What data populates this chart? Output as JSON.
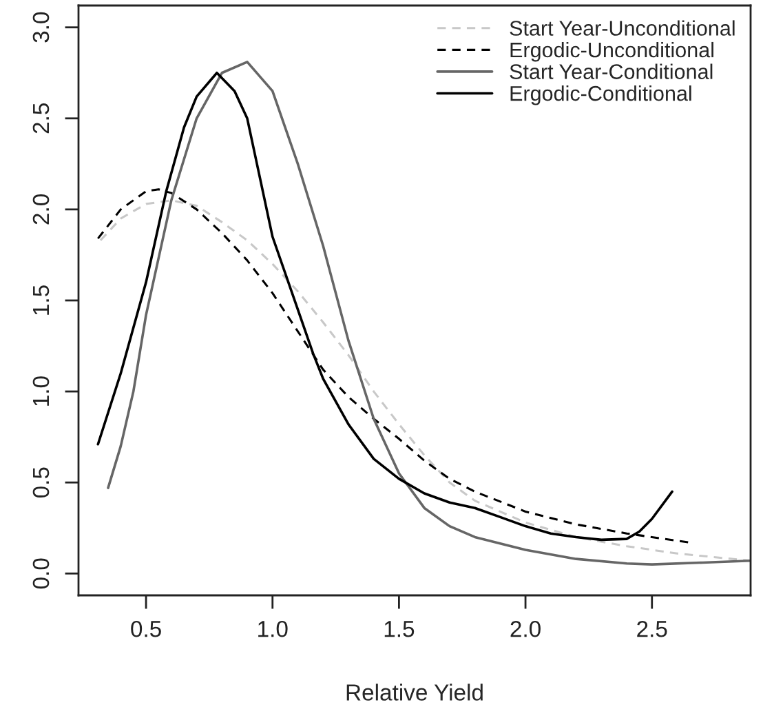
{
  "chart_data": {
    "type": "line",
    "xlabel": "Relative Yield",
    "xlim": [
      0.233,
      2.89
    ],
    "ylim": [
      -0.12,
      3.12
    ],
    "xticks": [
      0.5,
      {
        "value": 1,
        "label": "1.0"
      },
      1.5,
      {
        "value": 2,
        "label": "2.0"
      },
      2.5
    ],
    "yticks": [
      {
        "value": 0,
        "label": "0.0"
      },
      0.5,
      {
        "value": 1,
        "label": "1.0"
      },
      1.5,
      {
        "value": 2,
        "label": "2.0"
      },
      2.5,
      {
        "value": 3,
        "label": "3.0"
      }
    ],
    "grid": false,
    "legend": "top right",
    "marker": "none",
    "series": [
      {
        "name": "Start Year-Unconditional",
        "color": "#c8c8c8",
        "line_style": "dashed",
        "x": [
          0.32,
          0.4,
          0.5,
          0.6,
          0.7,
          0.8,
          0.9,
          1.0,
          1.1,
          1.2,
          1.3,
          1.4,
          1.5,
          1.6,
          1.7,
          1.8,
          2.0,
          2.2,
          2.4,
          2.6,
          2.89
        ],
        "values": [
          1.83,
          1.95,
          2.03,
          2.05,
          2.02,
          1.93,
          1.83,
          1.7,
          1.55,
          1.38,
          1.2,
          1.0,
          0.82,
          0.65,
          0.5,
          0.4,
          0.28,
          0.2,
          0.15,
          0.11,
          0.07
        ]
      },
      {
        "name": "Ergodic-Unconditional",
        "color": "#000000",
        "line_style": "dashed",
        "x": [
          0.31,
          0.4,
          0.5,
          0.55,
          0.6,
          0.7,
          0.8,
          0.9,
          1.0,
          1.1,
          1.2,
          1.3,
          1.4,
          1.5,
          1.6,
          1.7,
          1.8,
          2.0,
          2.2,
          2.4,
          2.65
        ],
        "values": [
          1.84,
          2.0,
          2.1,
          2.11,
          2.09,
          2.0,
          1.87,
          1.72,
          1.54,
          1.33,
          1.12,
          0.97,
          0.85,
          0.74,
          0.62,
          0.52,
          0.45,
          0.34,
          0.27,
          0.22,
          0.17
        ]
      },
      {
        "name": "Start Year-Conditional",
        "color": "#666666",
        "line_style": "solid",
        "x": [
          0.35,
          0.4,
          0.45,
          0.5,
          0.6,
          0.7,
          0.8,
          0.9,
          1.0,
          1.1,
          1.2,
          1.3,
          1.4,
          1.5,
          1.6,
          1.7,
          1.8,
          2.0,
          2.2,
          2.4,
          2.5,
          2.7,
          2.89
        ],
        "values": [
          0.47,
          0.7,
          1.0,
          1.42,
          2.05,
          2.5,
          2.75,
          2.81,
          2.65,
          2.25,
          1.8,
          1.28,
          0.85,
          0.55,
          0.36,
          0.26,
          0.2,
          0.13,
          0.08,
          0.055,
          0.05,
          0.06,
          0.07
        ]
      },
      {
        "name": "Ergodic-Conditional",
        "color": "#000000",
        "line_style": "solid",
        "x": [
          0.31,
          0.4,
          0.5,
          0.58,
          0.65,
          0.7,
          0.78,
          0.85,
          0.9,
          1.0,
          1.1,
          1.16,
          1.2,
          1.3,
          1.4,
          1.5,
          1.6,
          1.7,
          1.8,
          1.9,
          2.0,
          2.1,
          2.2,
          2.3,
          2.4,
          2.45,
          2.5,
          2.58
        ],
        "values": [
          0.71,
          1.1,
          1.6,
          2.1,
          2.45,
          2.62,
          2.75,
          2.65,
          2.5,
          1.85,
          1.45,
          1.21,
          1.07,
          0.82,
          0.63,
          0.52,
          0.44,
          0.39,
          0.36,
          0.31,
          0.26,
          0.22,
          0.2,
          0.185,
          0.19,
          0.23,
          0.3,
          0.45
        ]
      }
    ]
  }
}
